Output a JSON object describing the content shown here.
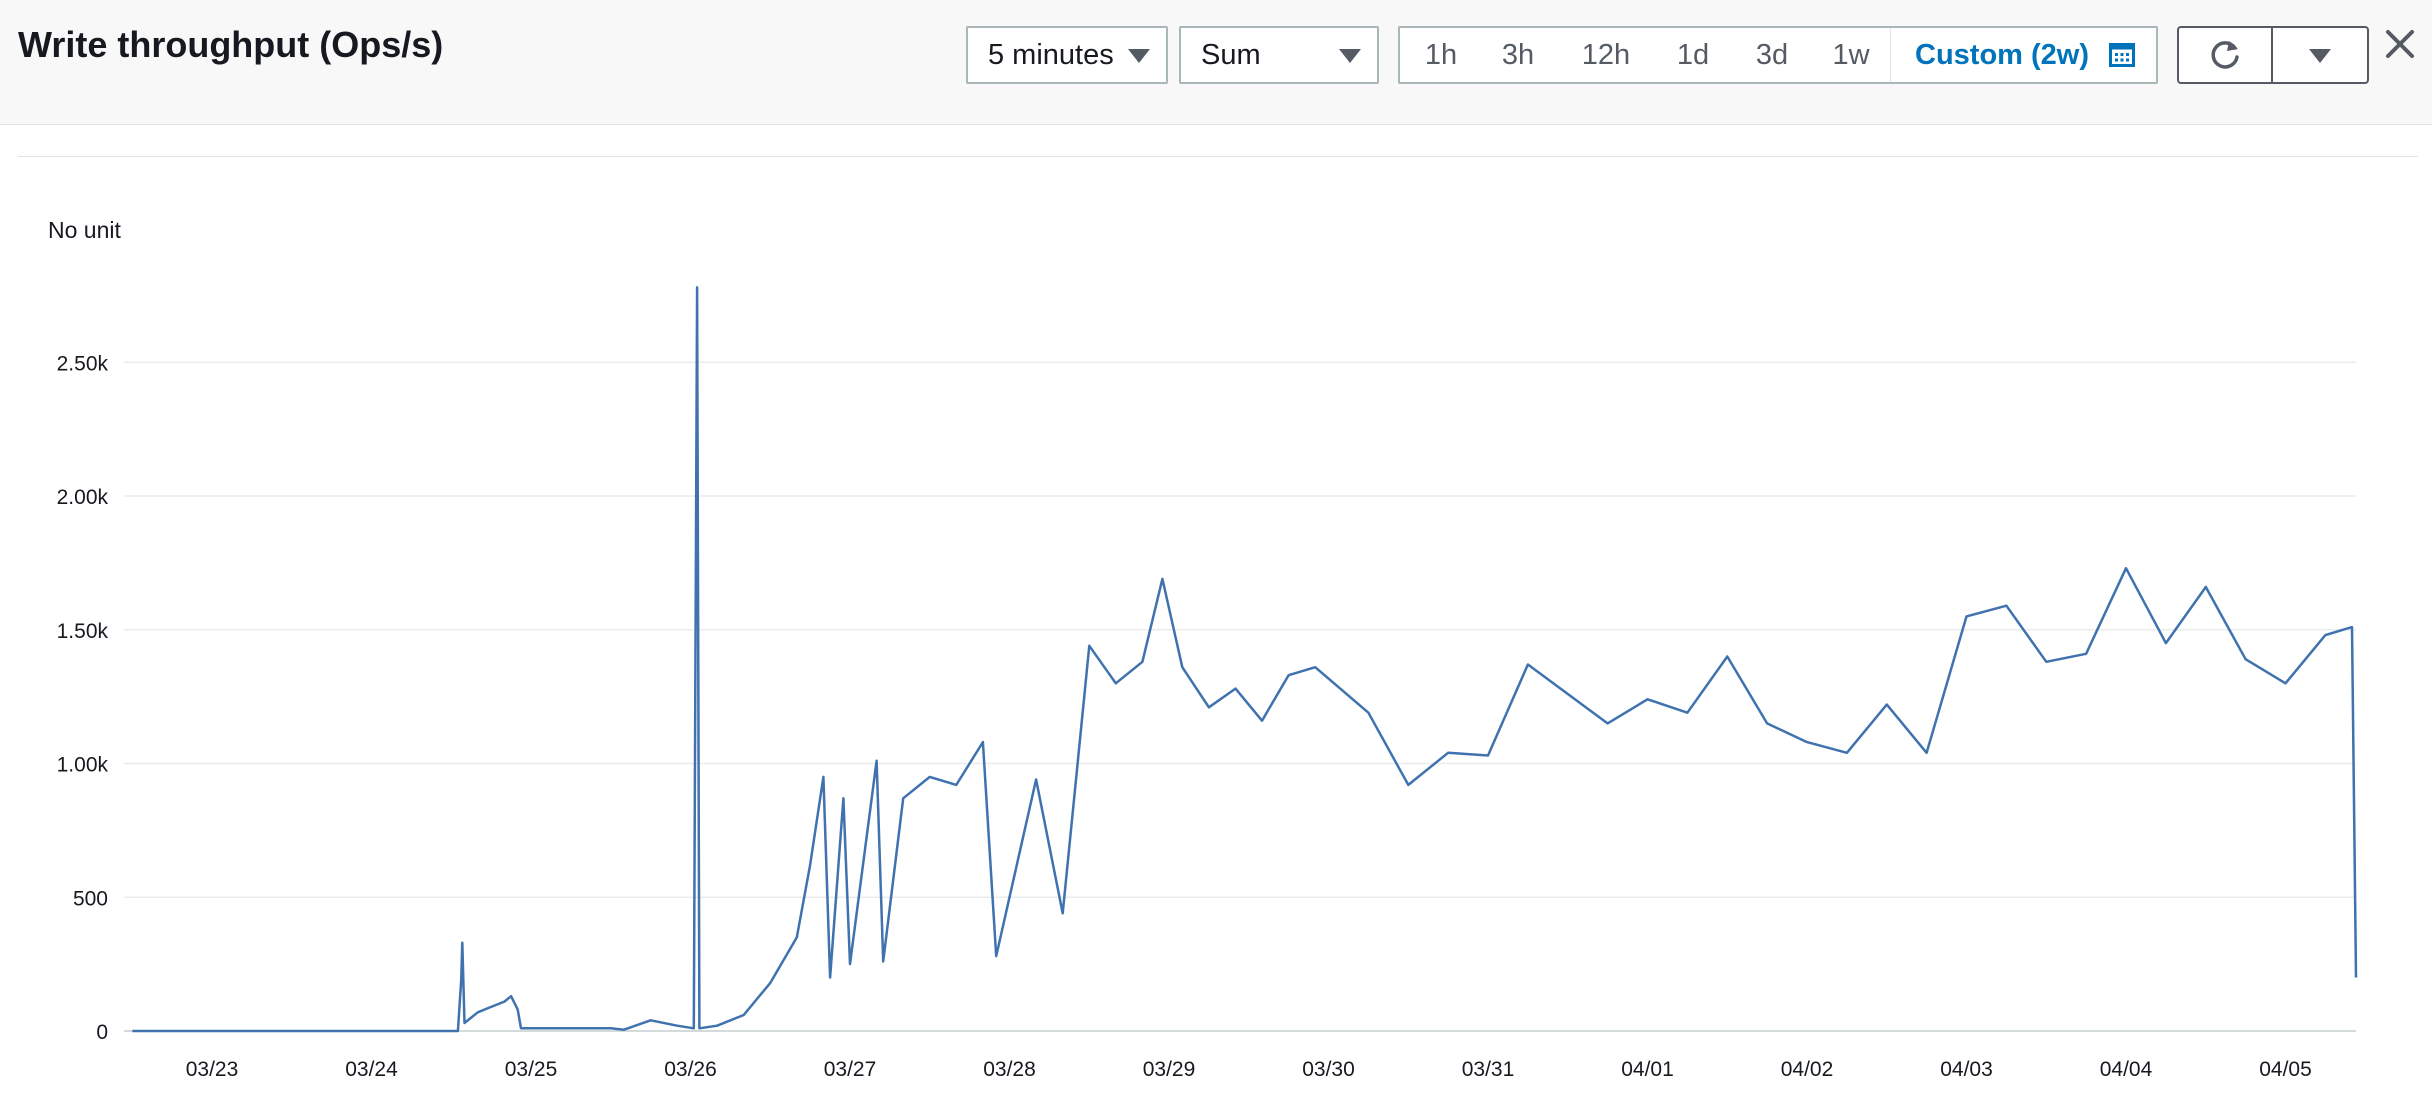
{
  "header": {
    "title": "Write throughput (Ops/s)",
    "period_value": "5 minutes",
    "statistic_value": "Sum",
    "ranges": [
      "1h",
      "3h",
      "12h",
      "1d",
      "3d",
      "1w"
    ],
    "custom_range_label": "Custom (2w)",
    "refresh_icon": "refresh-icon",
    "refresh_options_icon": "caret-down-icon",
    "calendar_icon": "calendar-icon",
    "close_icon": "close-icon"
  },
  "chart_data": {
    "type": "line",
    "unit_label": "No unit",
    "x_range": [
      "03/22",
      "04/05"
    ],
    "ylim": [
      0,
      2800
    ],
    "y_ticks": [
      0,
      500,
      1000,
      1500,
      2000,
      2500
    ],
    "y_tick_labels": [
      "0",
      "500",
      "1.00k",
      "1.50k",
      "2.00k",
      "2.50k"
    ],
    "x_tick_labels": [
      "03/23",
      "03/24",
      "03/25",
      "03/26",
      "03/27",
      "03/28",
      "03/29",
      "03/30",
      "03/31",
      "04/01",
      "04/02",
      "04/03",
      "04/04",
      "04/05"
    ],
    "grid": true,
    "series_color": "#3f72ae",
    "points": [
      [
        "03/22 12:00",
        0
      ],
      [
        "03/24 13:00",
        0
      ],
      [
        "03/24 13:30",
        190
      ],
      [
        "03/24 13:40",
        330
      ],
      [
        "03/24 14:00",
        30
      ],
      [
        "03/24 16:00",
        70
      ],
      [
        "03/24 18:00",
        90
      ],
      [
        "03/24 20:00",
        110
      ],
      [
        "03/24 21:00",
        130
      ],
      [
        "03/24 22:00",
        80
      ],
      [
        "03/24 22:30",
        10
      ],
      [
        "03/25 12:00",
        10
      ],
      [
        "03/25 14:00",
        5
      ],
      [
        "03/25 18:00",
        40
      ],
      [
        "03/25 22:00",
        20
      ],
      [
        "03/26 00:30",
        10
      ],
      [
        "03/26 01:00",
        2780
      ],
      [
        "03/26 01:20",
        10
      ],
      [
        "03/26 04:00",
        20
      ],
      [
        "03/26 08:00",
        60
      ],
      [
        "03/26 12:00",
        180
      ],
      [
        "03/26 16:00",
        350
      ],
      [
        "03/26 18:00",
        620
      ],
      [
        "03/26 20:00",
        950
      ],
      [
        "03/26 21:00",
        200
      ],
      [
        "03/26 23:00",
        870
      ],
      [
        "03/27 00:00",
        250
      ],
      [
        "03/27 04:00",
        1010
      ],
      [
        "03/27 05:00",
        260
      ],
      [
        "03/27 08:00",
        870
      ],
      [
        "03/27 12:00",
        950
      ],
      [
        "03/27 16:00",
        920
      ],
      [
        "03/27 20:00",
        1080
      ],
      [
        "03/27 22:00",
        280
      ],
      [
        "03/28 04:00",
        940
      ],
      [
        "03/28 08:00",
        440
      ],
      [
        "03/28 12:00",
        1440
      ],
      [
        "03/28 16:00",
        1300
      ],
      [
        "03/28 20:00",
        1380
      ],
      [
        "03/28 23:00",
        1690
      ],
      [
        "03/29 02:00",
        1360
      ],
      [
        "03/29 06:00",
        1210
      ],
      [
        "03/29 10:00",
        1280
      ],
      [
        "03/29 14:00",
        1160
      ],
      [
        "03/29 18:00",
        1330
      ],
      [
        "03/29 22:00",
        1360
      ],
      [
        "03/30 06:00",
        1190
      ],
      [
        "03/30 12:00",
        920
      ],
      [
        "03/30 18:00",
        1040
      ],
      [
        "03/31 00:00",
        1030
      ],
      [
        "03/31 06:00",
        1370
      ],
      [
        "03/31 12:00",
        1260
      ],
      [
        "03/31 18:00",
        1150
      ],
      [
        "04/01 00:00",
        1240
      ],
      [
        "04/01 06:00",
        1190
      ],
      [
        "04/01 12:00",
        1400
      ],
      [
        "04/01 18:00",
        1150
      ],
      [
        "04/02 00:00",
        1080
      ],
      [
        "04/02 06:00",
        1040
      ],
      [
        "04/02 12:00",
        1220
      ],
      [
        "04/02 18:00",
        1040
      ],
      [
        "04/03 00:00",
        1550
      ],
      [
        "04/03 06:00",
        1590
      ],
      [
        "04/03 12:00",
        1380
      ],
      [
        "04/03 18:00",
        1410
      ],
      [
        "04/04 00:00",
        1730
      ],
      [
        "04/04 06:00",
        1450
      ],
      [
        "04/04 12:00",
        1660
      ],
      [
        "04/04 18:00",
        1390
      ],
      [
        "04/05 00:00",
        1300
      ],
      [
        "04/05 06:00",
        1480
      ],
      [
        "04/05 10:00",
        1510
      ],
      [
        "04/05 12:00",
        200
      ]
    ]
  }
}
